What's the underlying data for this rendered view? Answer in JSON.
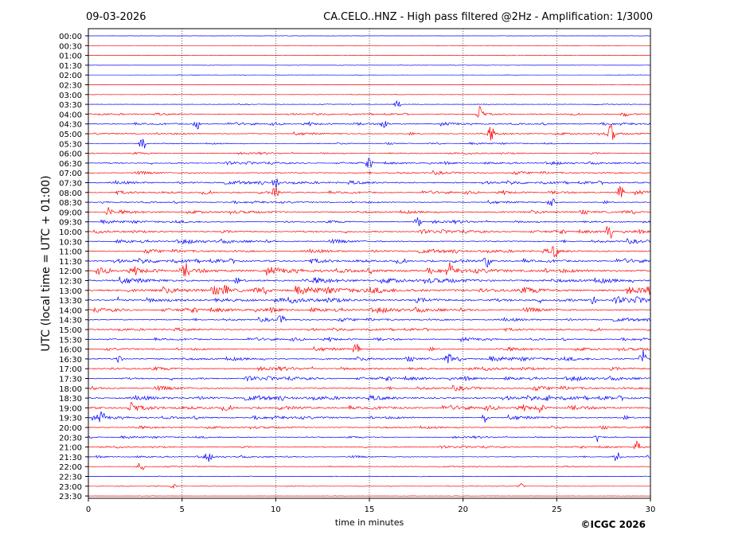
{
  "header": {
    "date": "09-03-2026",
    "title": "CA.CELO..HNZ - High pass filtered @2Hz - Amplification: 1/3000"
  },
  "footer": {
    "copyright": "©ICGC 2026"
  },
  "colors": {
    "trace_a": "#0000ff",
    "trace_b": "#ff0000",
    "grid": "#000000"
  },
  "chart_data": {
    "type": "line",
    "subtype": "helicorder",
    "xlabel": "time in minutes",
    "ylabel": "UTC (local time = UTC + 01:00)",
    "xlim": [
      0,
      30
    ],
    "x_ticks": [
      "0",
      "5",
      "10",
      "15",
      "20",
      "25",
      "30"
    ],
    "x_gridlines": [
      5,
      10,
      15,
      20,
      25
    ],
    "grid": "vertical dotted",
    "row_labels": [
      "00:00",
      "00:30",
      "01:00",
      "01:30",
      "02:00",
      "02:30",
      "03:00",
      "03:30",
      "04:00",
      "04:30",
      "05:00",
      "05:30",
      "06:00",
      "06:30",
      "07:00",
      "07:30",
      "08:00",
      "08:30",
      "09:00",
      "09:30",
      "10:00",
      "10:30",
      "11:00",
      "11:30",
      "12:00",
      "12:30",
      "13:00",
      "13:30",
      "14:00",
      "14:30",
      "15:00",
      "15:30",
      "16:00",
      "16:30",
      "17:00",
      "17:30",
      "18:00",
      "18:30",
      "19:00",
      "19:30",
      "20:00",
      "20:30",
      "21:00",
      "21:30",
      "22:00",
      "22:30",
      "23:00",
      "23:30"
    ],
    "row_colors": [
      "b",
      "r",
      "r",
      "b",
      "b",
      "r",
      "r",
      "b",
      "r",
      "b",
      "r",
      "b",
      "r",
      "b",
      "r",
      "b",
      "r",
      "b",
      "r",
      "b",
      "r",
      "b",
      "r",
      "b",
      "r",
      "b",
      "r",
      "b",
      "r",
      "b",
      "r",
      "b",
      "r",
      "b",
      "r",
      "b",
      "r",
      "b",
      "r",
      "b",
      "r",
      "b",
      "r",
      "b",
      "r",
      "b",
      "r",
      "r"
    ],
    "row_noise_level": [
      0.05,
      0.05,
      0.05,
      0.05,
      0.05,
      0.05,
      0.06,
      0.1,
      0.25,
      0.35,
      0.35,
      0.2,
      0.25,
      0.3,
      0.35,
      0.4,
      0.4,
      0.35,
      0.45,
      0.35,
      0.4,
      0.45,
      0.45,
      0.55,
      0.8,
      0.75,
      0.85,
      0.7,
      0.55,
      0.4,
      0.35,
      0.4,
      0.45,
      0.5,
      0.45,
      0.45,
      0.5,
      0.55,
      0.6,
      0.5,
      0.35,
      0.25,
      0.25,
      0.25,
      0.15,
      0.08,
      0.08,
      0.06
    ],
    "bursts": [
      {
        "row": 7,
        "x": 16.5,
        "amp": 5
      },
      {
        "row": 8,
        "x": 20.9,
        "amp": 12
      },
      {
        "row": 8,
        "x": 28.6,
        "amp": 6
      },
      {
        "row": 9,
        "x": 15.8,
        "amp": 8
      },
      {
        "row": 9,
        "x": 5.8,
        "amp": 7
      },
      {
        "row": 10,
        "x": 27.9,
        "amp": 14
      },
      {
        "row": 10,
        "x": 21.5,
        "amp": 10
      },
      {
        "row": 11,
        "x": 2.9,
        "amp": 12
      },
      {
        "row": 13,
        "x": 15.0,
        "amp": 6
      },
      {
        "row": 15,
        "x": 10.0,
        "amp": 7
      },
      {
        "row": 16,
        "x": 10.0,
        "amp": 8
      },
      {
        "row": 16,
        "x": 28.4,
        "amp": 10
      },
      {
        "row": 17,
        "x": 24.7,
        "amp": 9
      },
      {
        "row": 18,
        "x": 1.1,
        "amp": 6
      },
      {
        "row": 19,
        "x": 17.6,
        "amp": 7
      },
      {
        "row": 20,
        "x": 27.8,
        "amp": 14
      },
      {
        "row": 22,
        "x": 24.9,
        "amp": 9
      },
      {
        "row": 23,
        "x": 21.3,
        "amp": 10
      },
      {
        "row": 24,
        "x": 19.3,
        "amp": 8
      },
      {
        "row": 24,
        "x": 5.2,
        "amp": 7
      },
      {
        "row": 26,
        "x": 7.3,
        "amp": 7
      },
      {
        "row": 27,
        "x": 26.9,
        "amp": 6
      },
      {
        "row": 29,
        "x": 10.3,
        "amp": 6
      },
      {
        "row": 32,
        "x": 14.3,
        "amp": 8
      },
      {
        "row": 33,
        "x": 1.6,
        "amp": 7
      },
      {
        "row": 33,
        "x": 19.2,
        "amp": 8
      },
      {
        "row": 33,
        "x": 29.6,
        "amp": 14
      },
      {
        "row": 37,
        "x": 24.6,
        "amp": 7
      },
      {
        "row": 38,
        "x": 2.3,
        "amp": 8
      },
      {
        "row": 38,
        "x": 24.1,
        "amp": 7
      },
      {
        "row": 39,
        "x": 0.7,
        "amp": 7
      },
      {
        "row": 39,
        "x": 21.2,
        "amp": 7
      },
      {
        "row": 41,
        "x": 27.2,
        "amp": 8
      },
      {
        "row": 42,
        "x": 29.3,
        "amp": 8
      },
      {
        "row": 43,
        "x": 6.4,
        "amp": 6
      },
      {
        "row": 43,
        "x": 28.2,
        "amp": 7
      },
      {
        "row": 44,
        "x": 2.8,
        "amp": 9
      },
      {
        "row": 46,
        "x": 4.5,
        "amp": 4
      },
      {
        "row": 46,
        "x": 23.1,
        "amp": 4
      }
    ]
  }
}
